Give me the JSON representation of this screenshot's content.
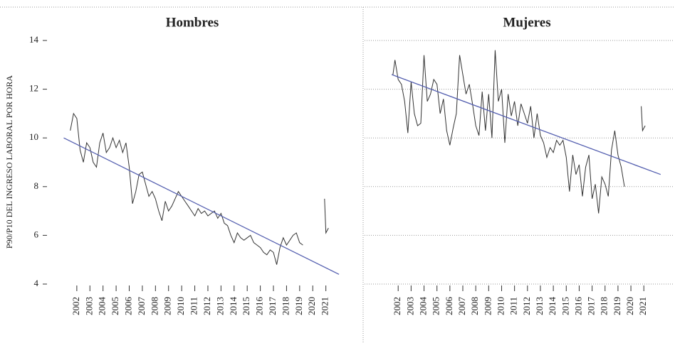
{
  "chart_data": [
    {
      "type": "line",
      "title": "Hombres",
      "ylabel": "P90/P10 DEL INGRESO LABORAL POR HORA",
      "xlim": [
        1999.4,
        2023.3
      ],
      "xticks": [
        2002,
        2003,
        2004,
        2005,
        2006,
        2007,
        2008,
        2009,
        2010,
        2011,
        2012,
        2013,
        2014,
        2015,
        2016,
        2017,
        2018,
        2019,
        2020,
        2021
      ],
      "ylim": [
        4,
        14
      ],
      "yticks": [
        4,
        6,
        8,
        10,
        12,
        14
      ],
      "show_ytick_labels": true,
      "grid": false,
      "series": [
        {
          "name": "Hombres",
          "color": "#333333",
          "x": [
            2001.5,
            2001.75,
            2002,
            2002.25,
            2002.5,
            2002.75,
            2003,
            2003.25,
            2003.5,
            2003.75,
            2004,
            2004.25,
            2004.5,
            2004.75,
            2005,
            2005.25,
            2005.5,
            2005.75,
            2006,
            2006.25,
            2006.5,
            2006.75,
            2007,
            2007.25,
            2007.5,
            2007.75,
            2008,
            2008.25,
            2008.5,
            2008.75,
            2009,
            2009.25,
            2009.5,
            2009.75,
            2010,
            2010.25,
            2010.5,
            2010.75,
            2011,
            2011.25,
            2011.5,
            2011.75,
            2012,
            2012.25,
            2012.5,
            2012.75,
            2013,
            2013.25,
            2013.5,
            2013.75,
            2014,
            2014.25,
            2014.5,
            2014.75,
            2015,
            2015.25,
            2015.5,
            2015.75,
            2016,
            2016.25,
            2016.5,
            2016.75,
            2017,
            2017.25,
            2017.5,
            2017.75,
            2018,
            2018.25,
            2018.5,
            2018.75,
            2019,
            2019.25,
            2020.4,
            2020.9,
            2021,
            2021.2
          ],
          "values": [
            10.3,
            11.0,
            10.8,
            9.5,
            9.0,
            9.8,
            9.6,
            9.0,
            8.8,
            9.8,
            10.2,
            9.4,
            9.6,
            10.0,
            9.6,
            9.9,
            9.4,
            9.8,
            8.8,
            7.3,
            7.8,
            8.5,
            8.6,
            8.1,
            7.6,
            7.8,
            7.5,
            7.0,
            6.6,
            7.4,
            7.0,
            7.2,
            7.5,
            7.8,
            7.6,
            7.4,
            7.2,
            7.0,
            6.8,
            7.1,
            6.9,
            7.0,
            6.8,
            6.9,
            7.0,
            6.7,
            6.9,
            6.5,
            6.4,
            6.0,
            5.7,
            6.1,
            5.9,
            5.8,
            5.9,
            6.0,
            5.7,
            5.6,
            5.5,
            5.3,
            5.2,
            5.4,
            5.3,
            4.8,
            5.5,
            5.9,
            5.6,
            5.8,
            6.0,
            6.1,
            5.7,
            5.6,
            null,
            7.5,
            6.1,
            6.3
          ]
        }
      ],
      "trend_line": {
        "color": "#5560b0",
        "x": [
          2001,
          2022
        ],
        "values": [
          10.0,
          4.4
        ]
      }
    },
    {
      "type": "line",
      "title": "Mujeres",
      "xlim": [
        1999.4,
        2023.3
      ],
      "xticks": [
        2002,
        2003,
        2004,
        2005,
        2006,
        2007,
        2008,
        2009,
        2010,
        2011,
        2012,
        2013,
        2014,
        2015,
        2016,
        2017,
        2018,
        2019,
        2020,
        2021
      ],
      "ylim": [
        4,
        14
      ],
      "yticks": [
        4,
        6,
        8,
        10,
        12,
        14
      ],
      "show_ytick_labels": false,
      "grid": true,
      "series": [
        {
          "name": "Mujeres",
          "color": "#333333",
          "x": [
            2001.6,
            2001.75,
            2002,
            2002.25,
            2002.5,
            2002.75,
            2003,
            2003.25,
            2003.5,
            2003.75,
            2004,
            2004.25,
            2004.5,
            2004.75,
            2005,
            2005.25,
            2005.5,
            2005.75,
            2006,
            2006.25,
            2006.5,
            2006.75,
            2007,
            2007.25,
            2007.5,
            2007.75,
            2008,
            2008.25,
            2008.5,
            2008.75,
            2009,
            2009.25,
            2009.5,
            2009.75,
            2010,
            2010.25,
            2010.5,
            2010.75,
            2011,
            2011.25,
            2011.5,
            2011.75,
            2012,
            2012.25,
            2012.5,
            2012.75,
            2013,
            2013.25,
            2013.5,
            2013.75,
            2014,
            2014.25,
            2014.5,
            2014.75,
            2015,
            2015.25,
            2015.5,
            2015.75,
            2016,
            2016.25,
            2016.5,
            2016.75,
            2017,
            2017.25,
            2017.5,
            2017.75,
            2018,
            2018.25,
            2018.5,
            2018.75,
            2019,
            2019.25,
            2019.5,
            2020.2,
            2020.8,
            2020.9,
            2021.1
          ],
          "values": [
            12.6,
            13.2,
            12.4,
            12.2,
            11.5,
            10.2,
            12.3,
            11.0,
            10.5,
            10.6,
            13.4,
            11.5,
            11.8,
            12.4,
            12.2,
            11.0,
            11.6,
            10.3,
            9.7,
            10.4,
            11.0,
            13.4,
            12.6,
            11.8,
            12.2,
            11.4,
            10.5,
            10.1,
            11.9,
            10.3,
            11.8,
            10.0,
            13.6,
            11.5,
            12.0,
            9.8,
            11.8,
            10.9,
            11.5,
            10.5,
            11.4,
            11.0,
            10.6,
            11.3,
            10.0,
            11.0,
            10.1,
            9.8,
            9.2,
            9.6,
            9.4,
            9.9,
            9.7,
            9.9,
            9.2,
            7.8,
            9.3,
            8.5,
            8.9,
            7.6,
            8.8,
            9.3,
            7.5,
            8.1,
            6.9,
            8.4,
            8.1,
            7.6,
            9.5,
            10.3,
            9.3,
            8.8,
            8.0,
            null,
            11.3,
            10.3,
            10.5
          ]
        }
      ],
      "trend_line": {
        "color": "#5560b0",
        "x": [
          2001.5,
          2022.3
        ],
        "values": [
          12.6,
          8.5
        ]
      }
    }
  ]
}
